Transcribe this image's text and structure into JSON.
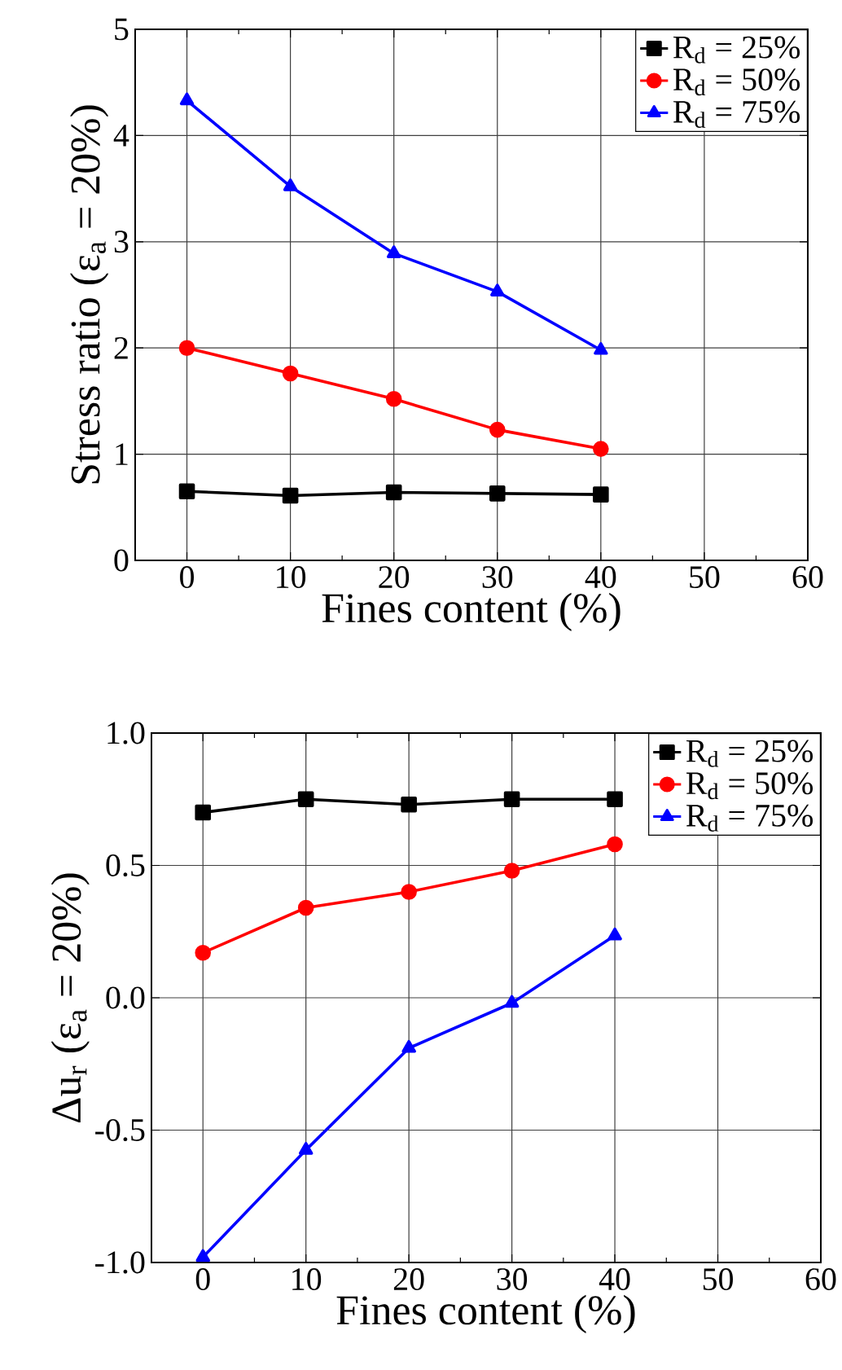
{
  "chart_data": [
    {
      "type": "line",
      "xlabel": "Fines content (%)",
      "ylabel": "Stress ratio (ε$_{a}$ = 20%)",
      "x": [
        0,
        10,
        20,
        30,
        40
      ],
      "xlim": [
        -5,
        60
      ],
      "xticks": [
        0,
        10,
        20,
        30,
        40,
        50,
        60
      ],
      "ylim": [
        0,
        5
      ],
      "yticks": [
        0,
        1,
        2,
        3,
        4,
        5
      ],
      "grid": true,
      "legend": "top right",
      "line_style": "solid",
      "series": [
        {
          "name": "R$_{d}$ = 25%",
          "color": "#000000",
          "marker": "square",
          "values": [
            0.65,
            0.61,
            0.64,
            0.63,
            0.62
          ]
        },
        {
          "name": "R$_{d}$ = 50%",
          "color": "#ff0000",
          "marker": "circle",
          "values": [
            2.0,
            1.76,
            1.52,
            1.23,
            1.05
          ]
        },
        {
          "name": "R$_{d}$ = 75%",
          "color": "#0000ff",
          "marker": "triangle",
          "values": [
            4.33,
            3.52,
            2.89,
            2.53,
            1.98
          ]
        }
      ]
    },
    {
      "type": "line",
      "xlabel": "Fines content (%)",
      "ylabel": "Δu$_{r}$ (ε$_{a}$ = 20%)",
      "x": [
        0,
        10,
        20,
        30,
        40
      ],
      "xlim": [
        -5,
        60
      ],
      "xticks": [
        0,
        10,
        20,
        30,
        40,
        50,
        60
      ],
      "ylim": [
        -1,
        1
      ],
      "yticks": [
        {
          "value": -1,
          "label": "-1.0"
        },
        {
          "value": -0.5,
          "label": "-0.5"
        },
        {
          "value": 0,
          "label": "0.0"
        },
        {
          "value": 0.5,
          "label": "0.5"
        },
        {
          "value": 1,
          "label": "1.0"
        }
      ],
      "grid": true,
      "legend": "top right",
      "line_style": "solid",
      "series": [
        {
          "name": "R$_{d}$ = 25%",
          "color": "#000000",
          "marker": "square",
          "values": [
            0.7,
            0.75,
            0.73,
            0.75,
            0.75
          ]
        },
        {
          "name": "R$_{d}$ = 50%",
          "color": "#ff0000",
          "marker": "circle",
          "values": [
            0.17,
            0.34,
            0.4,
            0.48,
            0.58
          ]
        },
        {
          "name": "R$_{d}$ = 75%",
          "color": "#0000ff",
          "marker": "triangle",
          "values": [
            -0.98,
            -0.575,
            -0.19,
            -0.02,
            0.235
          ]
        }
      ]
    }
  ]
}
